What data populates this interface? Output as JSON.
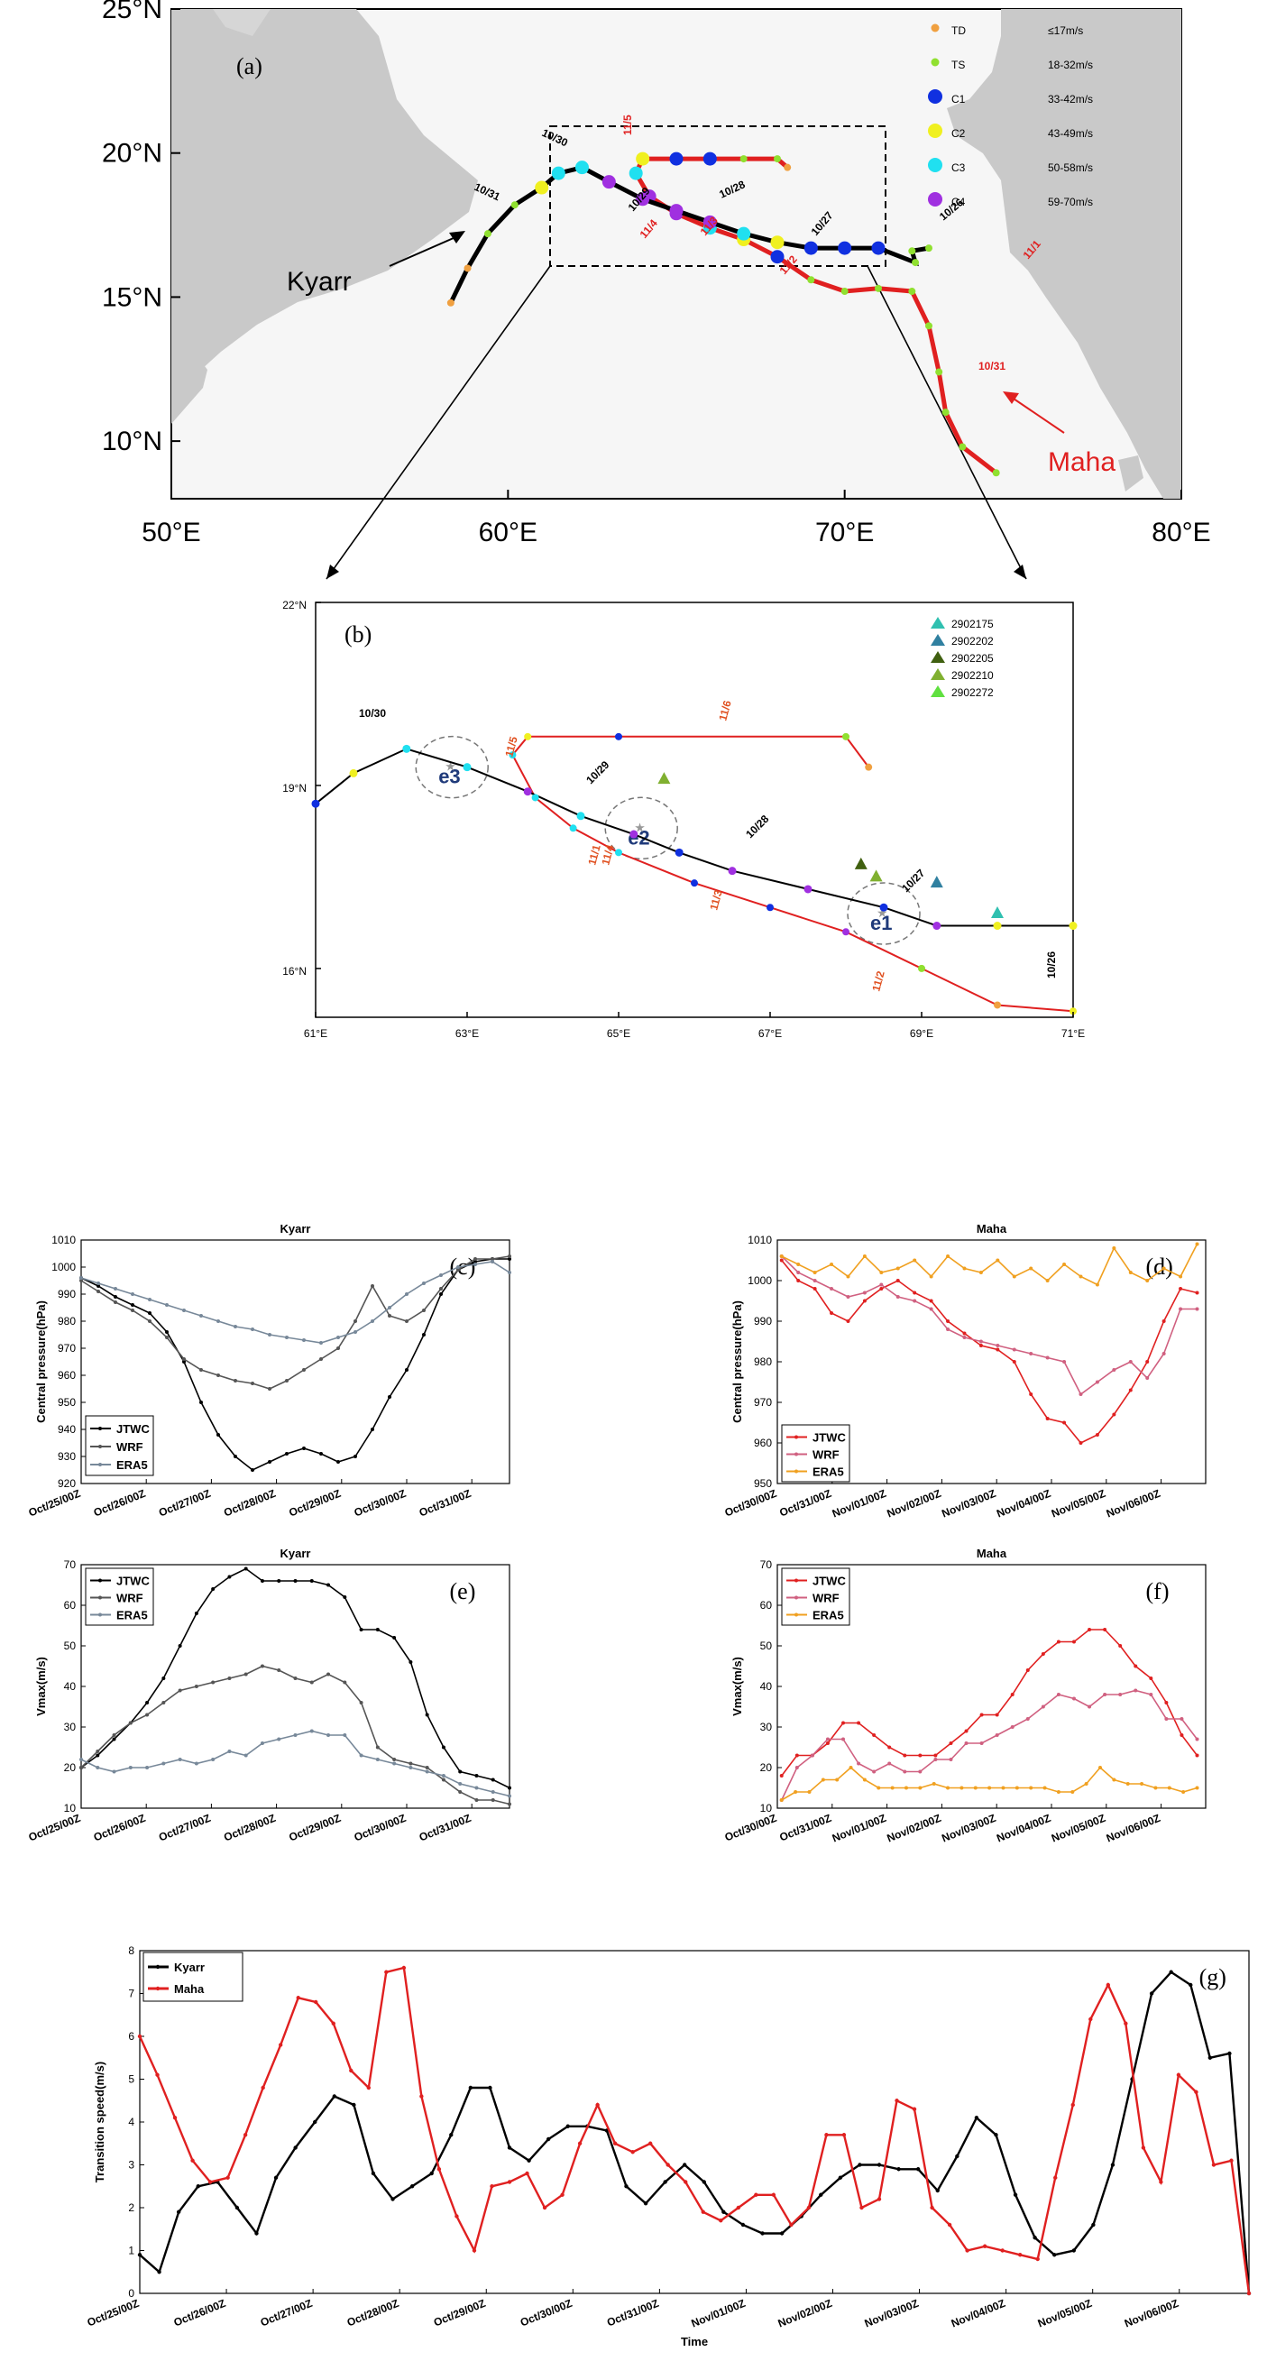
{
  "chart_data": [
    {
      "type": "scatter",
      "panel": "(a)",
      "map": "track map",
      "x_ticks": [
        "50°E",
        "60°E",
        "70°E",
        "80°E"
      ],
      "y_ticks": [
        "25°N",
        "20°N",
        "15°N",
        "10°N"
      ],
      "xlim": [
        50,
        80
      ],
      "ylim": [
        8,
        25
      ],
      "legend": [
        {
          "cat": "TD",
          "range": "≤17m/s",
          "color": "#f0a040"
        },
        {
          "cat": "TS",
          "range": "18-32m/s",
          "color": "#90e030"
        },
        {
          "cat": "C1",
          "range": "33-42m/s",
          "color": "#1030e0"
        },
        {
          "cat": "C2",
          "range": "43-49m/s",
          "color": "#f0f020"
        },
        {
          "cat": "C3",
          "range": "50-58m/s",
          "color": "#20e0f0"
        },
        {
          "cat": "C4",
          "range": "59-70m/s",
          "color": "#a030e0"
        }
      ],
      "storm_names": [
        "Kyarr",
        "Maha"
      ],
      "kyarr_dates": [
        "10/26",
        "10/27",
        "10/28",
        "10/29",
        "10/30",
        "10/31"
      ],
      "maha_dates": [
        "11/5",
        "11/4",
        "11/3",
        "11/2",
        "11/1",
        "10/31"
      ],
      "kyarr_track": [
        [
          72.5,
          16.7
        ],
        [
          72.0,
          16.6
        ],
        [
          72.1,
          16.2
        ],
        [
          71.0,
          16.7
        ],
        [
          70.0,
          16.7
        ],
        [
          69.0,
          16.7
        ],
        [
          68.0,
          16.9
        ],
        [
          67.0,
          17.2
        ],
        [
          66.0,
          17.6
        ],
        [
          65.0,
          18.0
        ],
        [
          64.0,
          18.4
        ],
        [
          63.0,
          19.0
        ],
        [
          62.2,
          19.5
        ],
        [
          61.5,
          19.3
        ],
        [
          61.0,
          18.8
        ],
        [
          60.2,
          18.2
        ],
        [
          59.4,
          17.2
        ],
        [
          58.8,
          16.0
        ],
        [
          58.3,
          14.8
        ]
      ],
      "maha_track": [
        [
          74.5,
          8.9
        ],
        [
          73.5,
          9.8
        ],
        [
          73.0,
          11.0
        ],
        [
          72.8,
          12.4
        ],
        [
          72.5,
          14.0
        ],
        [
          72.0,
          15.2
        ],
        [
          71.0,
          15.3
        ],
        [
          70.0,
          15.2
        ],
        [
          69.0,
          15.6
        ],
        [
          68.0,
          16.4
        ],
        [
          67.0,
          17.0
        ],
        [
          66.0,
          17.4
        ],
        [
          65.0,
          17.9
        ],
        [
          64.2,
          18.5
        ],
        [
          63.8,
          19.3
        ],
        [
          64.0,
          19.8
        ],
        [
          65.0,
          19.8
        ],
        [
          66.0,
          19.8
        ],
        [
          67.0,
          19.8
        ],
        [
          68.0,
          19.8
        ],
        [
          68.3,
          19.5
        ]
      ],
      "kyarr_cat": [
        "TS",
        "TS",
        "TS",
        "C1",
        "C1",
        "C1",
        "C2",
        "C3",
        "C4",
        "C4",
        "C4",
        "C4",
        "C3",
        "C3",
        "C2",
        "TS",
        "TS",
        "TD",
        "TD"
      ],
      "maha_cat": [
        "TS",
        "TS",
        "TS",
        "TS",
        "TS",
        "TS",
        "TS",
        "TS",
        "TS",
        "C1",
        "C2",
        "C3",
        "C4",
        "C4",
        "C3",
        "C2",
        "C1",
        "C1",
        "TS",
        "TS",
        "TD"
      ]
    },
    {
      "type": "scatter",
      "panel": "(b)",
      "x_ticks": [
        "61°E",
        "63°E",
        "65°E",
        "67°E",
        "69°E",
        "71°E"
      ],
      "y_ticks": [
        "22°N",
        "19°N",
        "16°N"
      ],
      "xlim": [
        61,
        71
      ],
      "ylim": [
        15.2,
        22
      ],
      "floats": [
        {
          "id": "2902175",
          "color": "#30c0b0"
        },
        {
          "id": "2902202",
          "color": "#3080a0"
        },
        {
          "id": "2902205",
          "color": "#406010"
        },
        {
          "id": "2902210",
          "color": "#80b030"
        },
        {
          "id": "2902272",
          "color": "#60e040"
        }
      ],
      "eddies": [
        "e1",
        "e2",
        "e3"
      ],
      "kyarr_dates": [
        "10/26",
        "10/27",
        "10/28",
        "10/29",
        "10/30"
      ],
      "maha_dates": [
        "11/1",
        "11/2",
        "11/3",
        "11/4",
        "11/5",
        "11/6"
      ],
      "kyarr_track": [
        [
          71.0,
          16.7
        ],
        [
          70.0,
          16.7
        ],
        [
          69.2,
          16.7
        ],
        [
          68.5,
          17.0
        ],
        [
          67.5,
          17.3
        ],
        [
          66.5,
          17.6
        ],
        [
          65.8,
          17.9
        ],
        [
          65.2,
          18.2
        ],
        [
          64.5,
          18.5
        ],
        [
          63.8,
          18.9
        ],
        [
          63.0,
          19.3
        ],
        [
          62.2,
          19.6
        ],
        [
          61.5,
          19.2
        ],
        [
          61.0,
          18.7
        ]
      ],
      "maha_track": [
        [
          71.0,
          15.3
        ],
        [
          70.0,
          15.4
        ],
        [
          69.0,
          16.0
        ],
        [
          68.0,
          16.6
        ],
        [
          67.0,
          17.0
        ],
        [
          66.0,
          17.4
        ],
        [
          65.0,
          17.9
        ],
        [
          64.4,
          18.3
        ],
        [
          63.9,
          18.8
        ],
        [
          63.6,
          19.5
        ],
        [
          63.8,
          19.8
        ],
        [
          65.0,
          19.8
        ],
        [
          68.0,
          19.8
        ],
        [
          68.3,
          19.3
        ]
      ]
    },
    {
      "type": "line",
      "panel": "(c)",
      "title": "Kyarr",
      "ylabel": "Central pressure(hPa)",
      "ylim": [
        920,
        1010
      ],
      "y_ticks": [
        "920",
        "930",
        "940",
        "950",
        "960",
        "970",
        "980",
        "990",
        "1000",
        "1010"
      ],
      "x_ticks": [
        "Oct/25/00Z",
        "Oct/26/00Z",
        "Oct/27/00Z",
        "Oct/28/00Z",
        "Oct/29/00Z",
        "Oct/30/00Z",
        "Oct/31/00Z"
      ],
      "series": [
        {
          "name": "JTWC",
          "color": "#000000",
          "values": [
            996,
            993,
            989,
            986,
            983,
            976,
            965,
            950,
            938,
            930,
            925,
            928,
            931,
            933,
            931,
            928,
            930,
            940,
            952,
            962,
            975,
            990,
            999,
            1002,
            1003,
            1003
          ]
        },
        {
          "name": "WRF",
          "color": "#555555",
          "values": [
            995,
            991,
            987,
            984,
            980,
            974,
            966,
            962,
            960,
            958,
            957,
            955,
            958,
            962,
            966,
            970,
            980,
            993,
            982,
            980,
            984,
            992,
            999,
            1003,
            1003,
            1004
          ]
        },
        {
          "name": "ERA5",
          "color": "#778899",
          "values": [
            996,
            994,
            992,
            990,
            988,
            986,
            984,
            982,
            980,
            978,
            977,
            975,
            974,
            973,
            972,
            974,
            976,
            980,
            985,
            990,
            994,
            997,
            1000,
            1001,
            1002,
            998
          ]
        }
      ]
    },
    {
      "type": "line",
      "panel": "(d)",
      "title": "Maha",
      "ylabel": "Central pressure(hPa)",
      "ylim": [
        950,
        1010
      ],
      "y_ticks": [
        "950",
        "960",
        "970",
        "980",
        "990",
        "1000",
        "1010"
      ],
      "x_ticks": [
        "Oct/30/00Z",
        "Oct/31/00Z",
        "Nov/01/00Z",
        "Nov/02/00Z",
        "Nov/03/00Z",
        "Nov/04/00Z",
        "Nov/05/00Z",
        "Nov/06/00Z"
      ],
      "series": [
        {
          "name": "JTWC",
          "color": "#e02020",
          "values": [
            1005,
            1000,
            998,
            992,
            990,
            995,
            998,
            1000,
            997,
            995,
            990,
            987,
            984,
            983,
            980,
            972,
            966,
            965,
            960,
            962,
            967,
            973,
            980,
            990,
            998,
            997
          ]
        },
        {
          "name": "WRF",
          "color": "#d06080",
          "values": [
            1006,
            1002,
            1000,
            998,
            996,
            997,
            999,
            996,
            995,
            993,
            988,
            986,
            985,
            984,
            983,
            982,
            981,
            980,
            972,
            975,
            978,
            980,
            976,
            982,
            993,
            993
          ]
        },
        {
          "name": "ERA5",
          "color": "#f0a020",
          "values": [
            1006,
            1004,
            1002,
            1004,
            1001,
            1006,
            1002,
            1003,
            1005,
            1001,
            1006,
            1003,
            1002,
            1005,
            1001,
            1003,
            1000,
            1004,
            1001,
            999,
            1008,
            1002,
            1000,
            1003,
            1001,
            1009
          ]
        }
      ]
    },
    {
      "type": "line",
      "panel": "(e)",
      "title": "Kyarr",
      "ylabel": "Vmax(m/s)",
      "ylim": [
        10,
        70
      ],
      "y_ticks": [
        "10",
        "20",
        "30",
        "40",
        "50",
        "60",
        "70"
      ],
      "x_ticks": [
        "Oct/25/00Z",
        "Oct/26/00Z",
        "Oct/27/00Z",
        "Oct/28/00Z",
        "Oct/29/00Z",
        "Oct/30/00Z",
        "Oct/31/00Z"
      ],
      "series": [
        {
          "name": "JTWC",
          "color": "#000000",
          "values": [
            20,
            23,
            27,
            31,
            36,
            42,
            50,
            58,
            64,
            67,
            69,
            66,
            66,
            66,
            66,
            65,
            62,
            54,
            54,
            52,
            46,
            33,
            25,
            19,
            18,
            17,
            15
          ]
        },
        {
          "name": "WRF",
          "color": "#555555",
          "values": [
            20,
            24,
            28,
            31,
            33,
            36,
            39,
            40,
            41,
            42,
            43,
            45,
            44,
            42,
            41,
            43,
            41,
            36,
            25,
            22,
            21,
            20,
            17,
            14,
            12,
            12,
            11
          ]
        },
        {
          "name": "ERA5",
          "color": "#778899",
          "values": [
            22,
            20,
            19,
            20,
            20,
            21,
            22,
            21,
            22,
            24,
            23,
            26,
            27,
            28,
            29,
            28,
            28,
            23,
            22,
            21,
            20,
            19,
            18,
            16,
            15,
            14,
            13
          ]
        }
      ]
    },
    {
      "type": "line",
      "panel": "(f)",
      "title": "Maha",
      "ylabel": "Vmax(m/s)",
      "ylim": [
        10,
        70
      ],
      "y_ticks": [
        "10",
        "20",
        "30",
        "40",
        "50",
        "60",
        "70"
      ],
      "x_ticks": [
        "Oct/30/00Z",
        "Oct/31/00Z",
        "Nov/01/00Z",
        "Nov/02/00Z",
        "Nov/03/00Z",
        "Nov/04/00Z",
        "Nov/05/00Z",
        "Nov/06/00Z"
      ],
      "series": [
        {
          "name": "JTWC",
          "color": "#e02020",
          "values": [
            18,
            23,
            23,
            26,
            31,
            31,
            28,
            25,
            23,
            23,
            23,
            26,
            29,
            33,
            33,
            38,
            44,
            48,
            51,
            51,
            54,
            54,
            50,
            45,
            42,
            36,
            28,
            23
          ]
        },
        {
          "name": "WRF",
          "color": "#d06080",
          "values": [
            12,
            20,
            23,
            27,
            27,
            21,
            19,
            21,
            19,
            19,
            22,
            22,
            26,
            26,
            28,
            30,
            32,
            35,
            38,
            37,
            35,
            38,
            38,
            39,
            38,
            32,
            32,
            27
          ]
        },
        {
          "name": "ERA5",
          "color": "#f0a020",
          "values": [
            12,
            14,
            14,
            17,
            17,
            20,
            17,
            15,
            15,
            15,
            15,
            16,
            15,
            15,
            15,
            15,
            15,
            15,
            15,
            15,
            14,
            14,
            16,
            20,
            17,
            16,
            16,
            15,
            15,
            14,
            15
          ]
        }
      ]
    },
    {
      "type": "line",
      "panel": "(g)",
      "xlabel": "Time",
      "ylabel": "Transition speed(m/s)",
      "ylim": [
        0,
        8
      ],
      "y_ticks": [
        "0",
        "1",
        "2",
        "3",
        "4",
        "5",
        "6",
        "7",
        "8"
      ],
      "x_ticks": [
        "Oct/25/00Z",
        "Oct/26/00Z",
        "Oct/27/00Z",
        "Oct/28/00Z",
        "Oct/29/00Z",
        "Oct/30/00Z",
        "Oct/31/00Z",
        "Nov/01/00Z",
        "Nov/02/00Z",
        "Nov/03/00Z",
        "Nov/04/00Z",
        "Nov/05/00Z",
        "Nov/06/00Z"
      ],
      "series": [
        {
          "name": "Kyarr",
          "color": "#000000",
          "values": [
            0.9,
            0.5,
            1.9,
            2.5,
            2.6,
            2.0,
            1.4,
            2.7,
            3.4,
            4.0,
            4.6,
            4.4,
            2.8,
            2.2,
            2.5,
            2.8,
            3.7,
            4.8,
            4.8,
            3.4,
            3.1,
            3.6,
            3.9,
            3.9,
            3.8,
            2.5,
            2.1,
            2.6,
            3.0,
            2.6,
            1.9,
            1.6,
            1.4,
            1.4,
            1.8,
            2.3,
            2.7,
            3.0,
            3.0,
            2.9,
            2.9,
            2.4,
            3.2,
            4.1,
            3.7,
            2.3,
            1.3,
            0.9,
            1.0,
            1.6,
            3.0,
            5.0,
            7.0,
            7.5,
            7.2,
            5.5,
            5.6,
            0.0
          ]
        },
        {
          "name": "Maha",
          "color": "#e02020",
          "values": [
            6.0,
            5.1,
            4.1,
            3.1,
            2.6,
            2.7,
            3.7,
            4.8,
            5.8,
            6.9,
            6.8,
            6.3,
            5.2,
            4.8,
            7.5,
            7.6,
            4.6,
            2.9,
            1.8,
            1.0,
            2.5,
            2.6,
            2.8,
            2.0,
            2.3,
            3.5,
            4.4,
            3.5,
            3.3,
            3.5,
            3.0,
            2.6,
            1.9,
            1.7,
            2.0,
            2.3,
            2.3,
            1.6,
            2.0,
            3.7,
            3.7,
            2.0,
            2.2,
            4.5,
            4.3,
            2.0,
            1.6,
            1.0,
            1.1,
            1.0,
            0.9,
            0.8,
            2.7,
            4.4,
            6.4,
            7.2,
            6.3,
            3.4,
            2.6,
            5.1,
            4.7,
            3.0,
            3.1,
            0.0
          ]
        }
      ]
    }
  ],
  "labels": {
    "a": "(a)",
    "b": "(b)",
    "c": "(c)",
    "d": "(d)",
    "e": "(e)",
    "f": "(f)",
    "g": "(g)",
    "kyarr": "Kyarr",
    "maha": "Maha",
    "time": "Time"
  },
  "colors": {
    "land": "#c8c8c8",
    "sea": "#f4f4f4",
    "kyarr": "#000000",
    "maha": "#e02020"
  }
}
